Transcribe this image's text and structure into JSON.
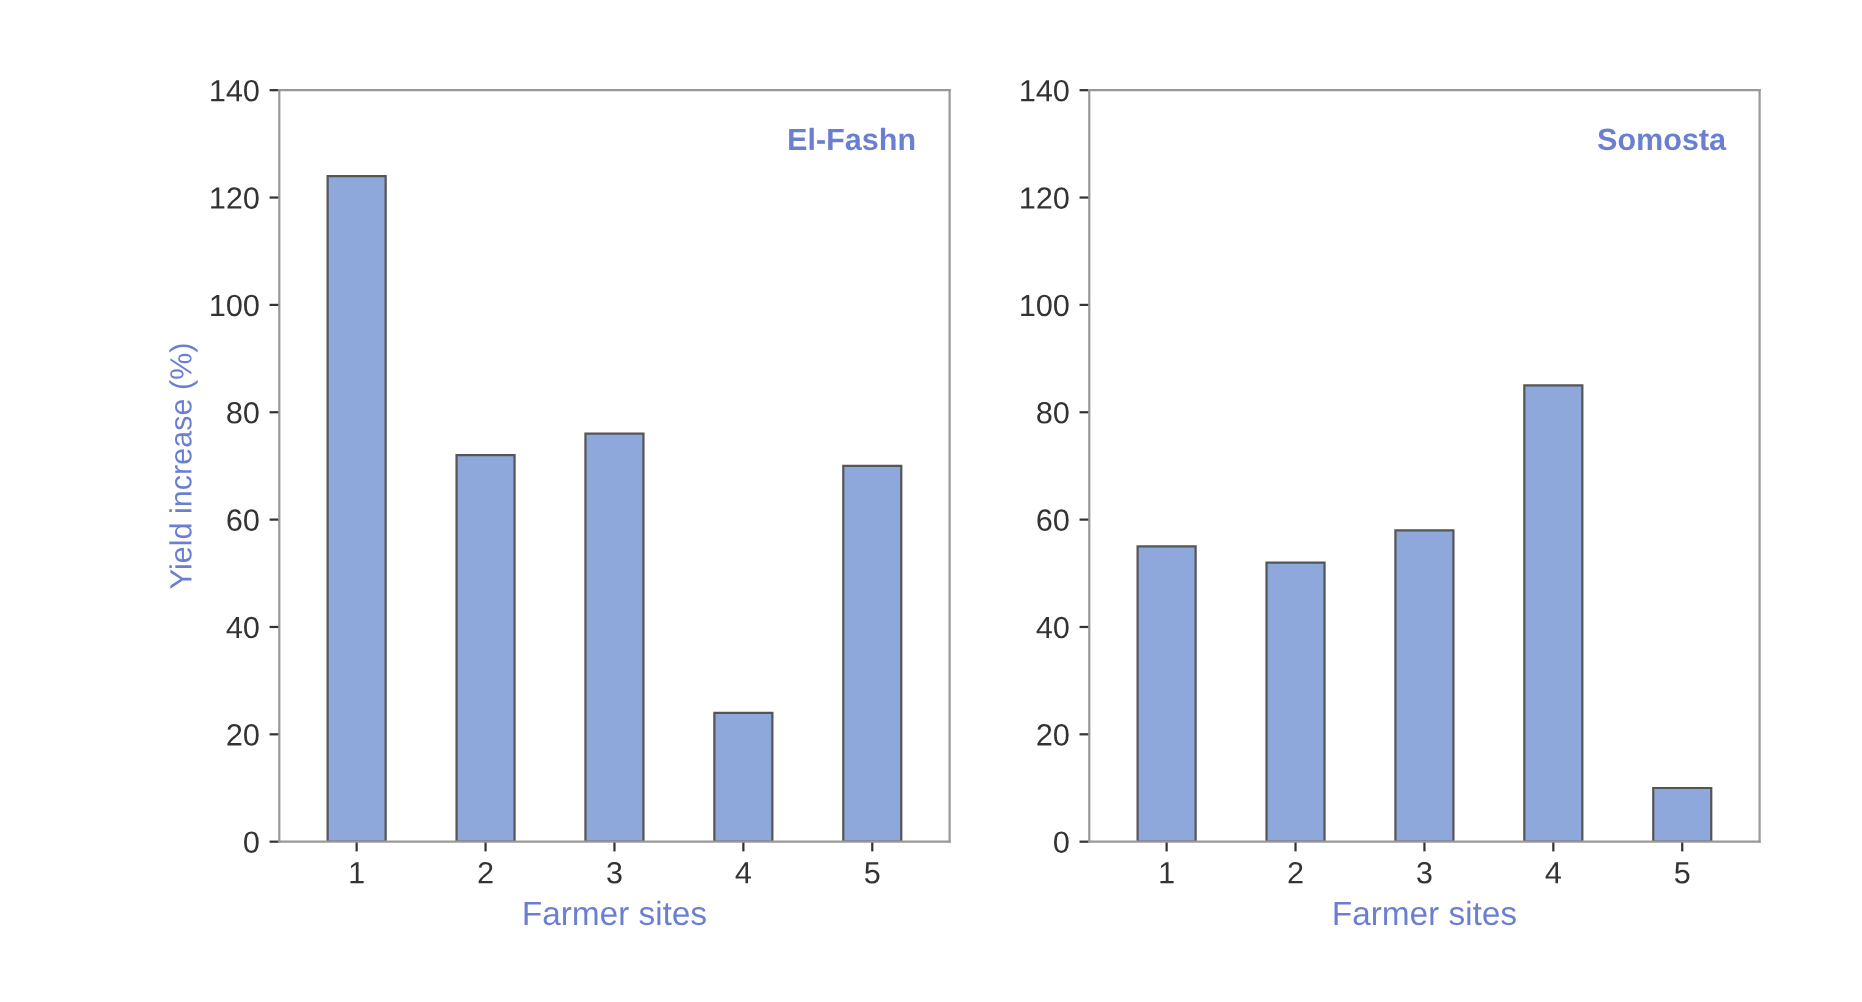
{
  "chart_data": [
    {
      "type": "bar",
      "title": "El-Fashn",
      "xlabel": "Farmer sites",
      "ylabel": "Yield increase (%)",
      "categories": [
        "1",
        "2",
        "3",
        "4",
        "5"
      ],
      "values": [
        124,
        72,
        76,
        24,
        70
      ],
      "color": "#8fa8dc",
      "ylim": [
        0,
        140
      ],
      "yticks": [
        0,
        20,
        40,
        60,
        80,
        100,
        120,
        140
      ],
      "grid": false
    },
    {
      "type": "bar",
      "title": "Somosta",
      "xlabel": "Farmer sites",
      "categories": [
        "1",
        "2",
        "3",
        "4",
        "5"
      ],
      "values": [
        55,
        52,
        58,
        85,
        10
      ],
      "color": "#8fa8dc",
      "ylim": [
        0,
        140
      ],
      "yticks": [
        0,
        20,
        40,
        60,
        80,
        100,
        120,
        140
      ],
      "grid": false
    }
  ]
}
